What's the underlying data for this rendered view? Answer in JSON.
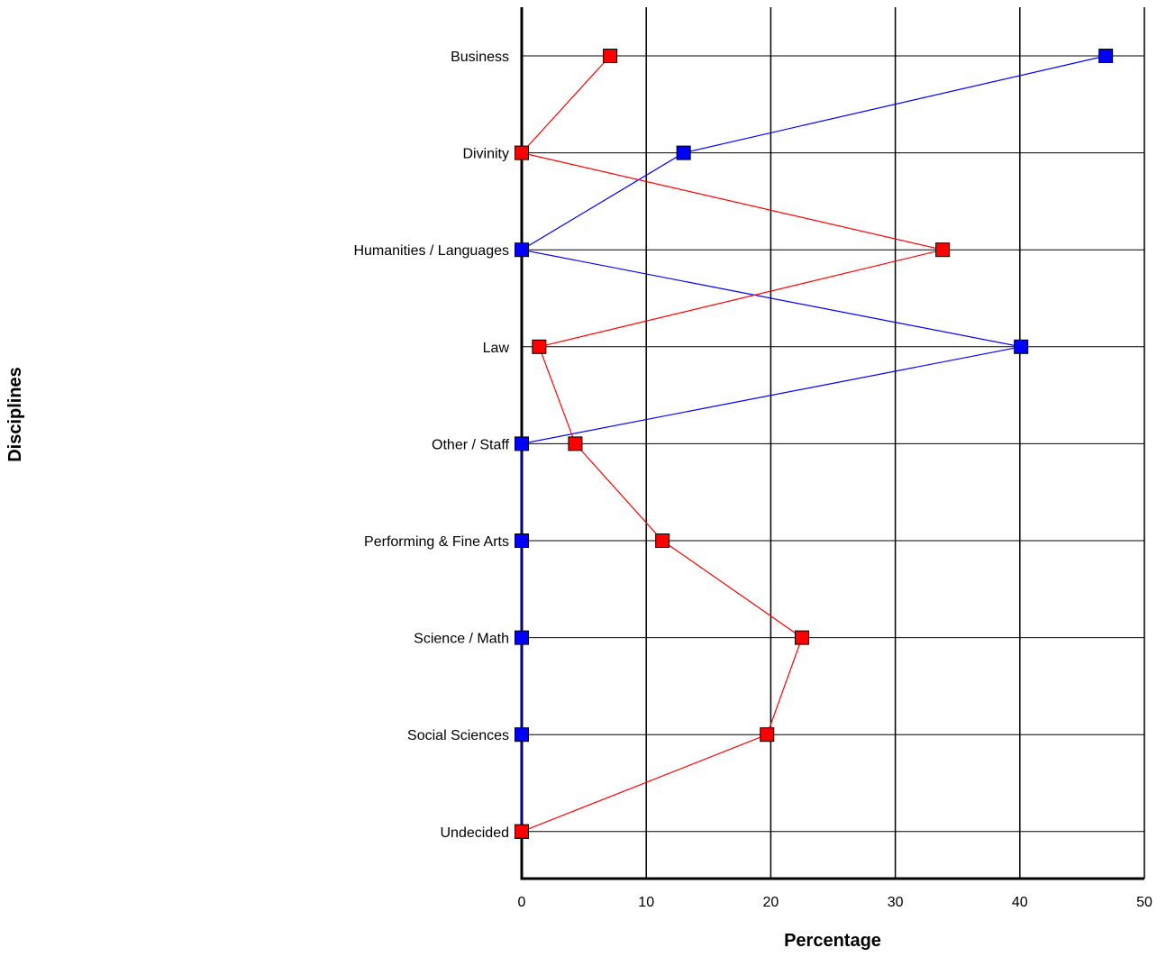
{
  "chart_data": {
    "type": "line",
    "orientation": "horizontal",
    "title": "",
    "xlabel": "Percentage",
    "ylabel": "Disciplines",
    "xlim": [
      0,
      50
    ],
    "xticks": [
      0,
      10,
      20,
      30,
      40,
      50
    ],
    "grid": true,
    "legend": "none",
    "categories": [
      "Business",
      "Divinity",
      "Humanities / Languages",
      "Law",
      "Other / Staff",
      "Performing & Fine Arts",
      "Science / Math",
      "Social Sciences",
      "Undecided"
    ],
    "series": [
      {
        "color": "#0000ff",
        "values": [
          46.9,
          13.0,
          0,
          40.1,
          0,
          0,
          0,
          0,
          0
        ]
      },
      {
        "color": "#ff0000",
        "values": [
          7.1,
          0,
          33.8,
          1.4,
          4.3,
          11.3,
          22.5,
          19.7,
          0
        ]
      }
    ]
  }
}
